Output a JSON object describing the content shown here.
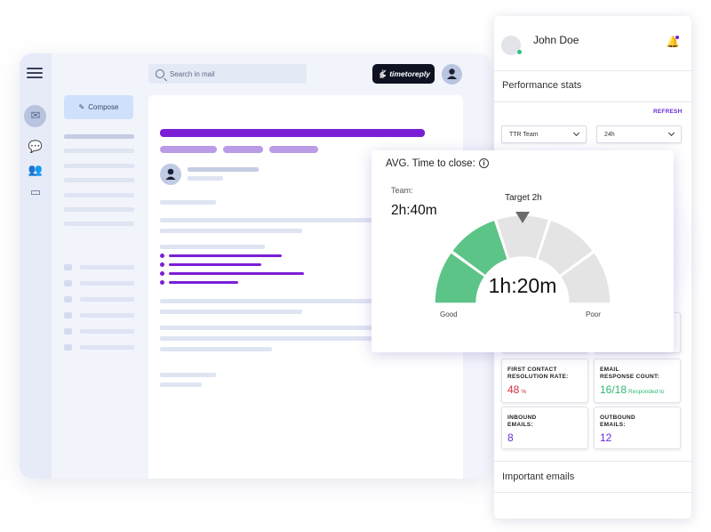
{
  "mail": {
    "search_placeholder": "Search in mail",
    "logo_text": "timetoreply",
    "compose_label": "Compose"
  },
  "panel": {
    "user_name": "John Doe",
    "performance_title": "Performance stats",
    "refresh_label": "REFRESH",
    "team_select": "TTR Team",
    "period_select": "24h",
    "cards": [
      {
        "label_line1": "FIRST CONTACT",
        "label_line2": "RESOLUTION RATE:",
        "value": "48",
        "unit": "%",
        "color": "#d32f3f"
      },
      {
        "label_line1": "EMAIL",
        "label_line2": "RESPONSE COUNT:",
        "value": "16/18",
        "unit": "Responded to",
        "color": "#2eb872"
      },
      {
        "label_line1": "INBOUND",
        "label_line2": "EMAILS:",
        "value": "8",
        "unit": "",
        "color": "#6a2cd4"
      },
      {
        "label_line1": "OUTBOUND",
        "label_line2": "EMAILS:",
        "value": "12",
        "unit": "",
        "color": "#6a2cd4"
      }
    ],
    "important_title": "Important emails"
  },
  "gauge": {
    "title": "AVG. Time to close:",
    "team_label": "Team:",
    "team_value": "2h:40m",
    "target_label": "Target 2h",
    "center_value": "1h:20m",
    "good_label": "Good",
    "poor_label": "Poor",
    "segments": 5,
    "filled_segments": 2,
    "fill_color": "#5cc487",
    "empty_color": "#e4e4e4"
  },
  "colors": {
    "accent_purple": "#7a1fd6",
    "tag_purple": "#b99be6"
  }
}
